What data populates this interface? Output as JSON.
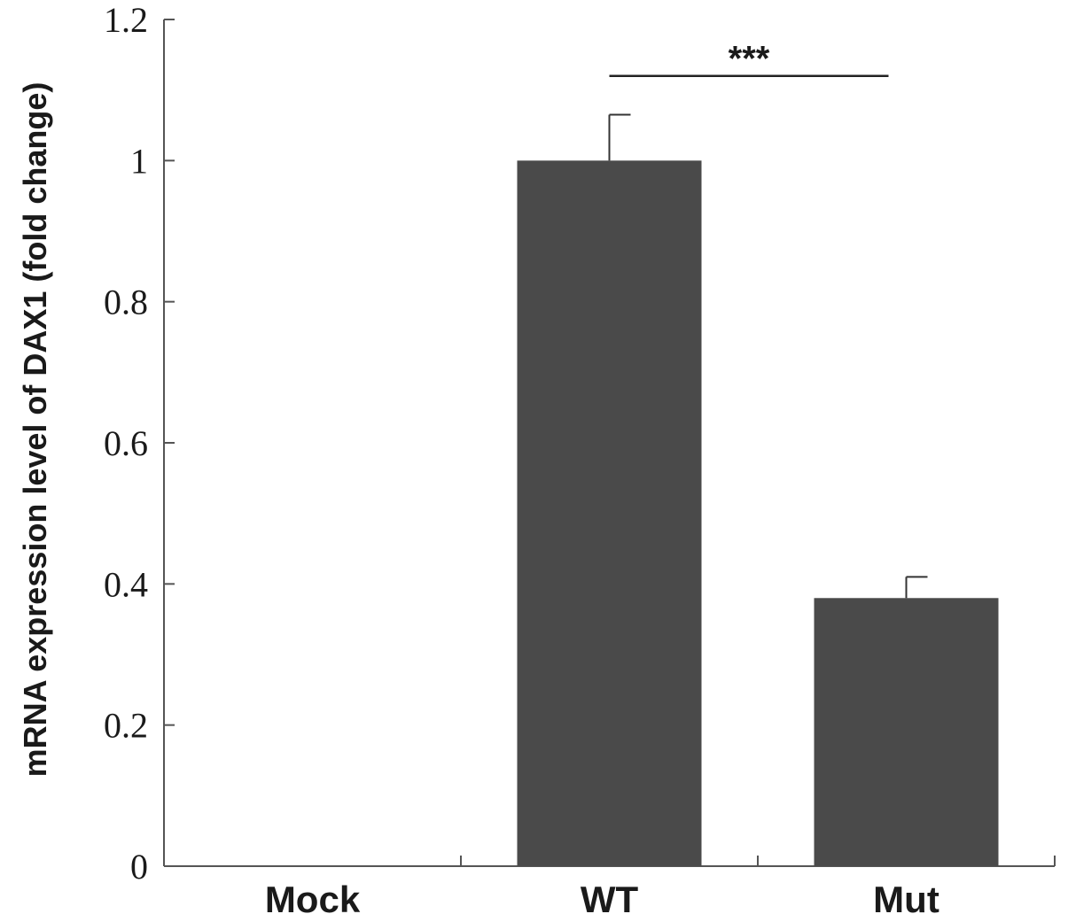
{
  "chart_data": {
    "type": "bar",
    "title": "",
    "xlabel": "",
    "ylabel": "mRNA expression level of DAX1 (fold change)",
    "categories": [
      "Mock",
      "WT",
      "Mut"
    ],
    "values": [
      0,
      1.0,
      0.38
    ],
    "error": [
      0,
      0.065,
      0.03
    ],
    "ylim": [
      0,
      1.2
    ],
    "yticks": [
      0,
      0.2,
      0.4,
      0.6,
      0.8,
      1,
      1.2
    ],
    "ytick_labels": [
      "0",
      "0.2",
      "0.4",
      "0.6",
      "0.8",
      "1",
      "1.2"
    ],
    "grid": false,
    "legend": "none",
    "bar_color": "#4a4a4a",
    "axis_color": "#555555",
    "significance": [
      {
        "from": "WT",
        "to": "Mut",
        "label": "***",
        "y": 1.12
      }
    ]
  }
}
